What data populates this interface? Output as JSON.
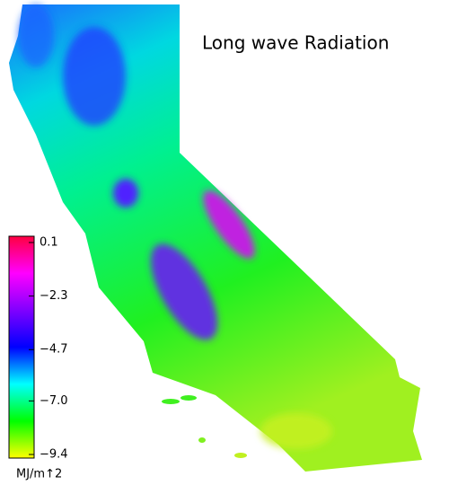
{
  "title": "Long wave Radiation",
  "colorbar": {
    "range": [
      -9.4,
      0.1
    ],
    "colors": [
      "#ffff00",
      "#00ff00",
      "#00ffff",
      "#0000ff",
      "#8000ff",
      "#ff00ff",
      "#ff0040"
    ],
    "ticks": [
      0.1,
      {
        "value": -2.3,
        "label": "−2.3"
      },
      {
        "value": -4.7,
        "label": "−4.7"
      },
      {
        "value": -7.0,
        "label": "−7.0"
      },
      {
        "value": -9.4,
        "label": "−9.4"
      }
    ],
    "unit": "MJ/m↑2"
  }
}
